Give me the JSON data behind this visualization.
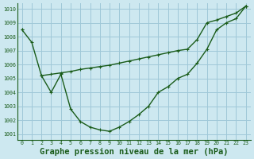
{
  "title": "Graphe pression niveau de la mer (hPa)",
  "background_color": "#cde8f0",
  "grid_color": "#9fc8d8",
  "line_color": "#1a5c1a",
  "ylim": [
    1000.6,
    1010.4
  ],
  "yticks": [
    1001,
    1002,
    1003,
    1004,
    1005,
    1006,
    1007,
    1008,
    1009,
    1010
  ],
  "xlim": [
    -0.5,
    23.5
  ],
  "xticks": [
    0,
    1,
    2,
    3,
    4,
    5,
    6,
    7,
    8,
    9,
    10,
    11,
    12,
    13,
    14,
    15,
    16,
    17,
    18,
    19,
    20,
    21,
    22,
    23
  ],
  "series1": [
    1008.5,
    1007.6,
    1005.2,
    1004.0,
    1005.3,
    1002.8,
    1001.9,
    1001.5,
    1001.3,
    1001.2,
    1001.5,
    1001.9,
    1002.4,
    1003.0,
    1004.0,
    1004.4,
    1005.0,
    1005.3,
    1006.1,
    1007.1,
    1008.5,
    1009.0,
    1009.3,
    1010.2
  ],
  "series2": [
    1008.5,
    null,
    null,
    null,
    null,
    null,
    null,
    null,
    null,
    null,
    null,
    null,
    null,
    null,
    null,
    null,
    null,
    null,
    null,
    null,
    null,
    null,
    null,
    1010.2
  ],
  "series3": [
    null,
    null,
    1005.2,
    1005.3,
    1005.4,
    1005.5,
    1005.65,
    1005.75,
    1005.85,
    1005.95,
    1006.1,
    1006.25,
    1006.4,
    1006.55,
    1006.7,
    1006.85,
    1007.0,
    1007.1,
    1007.8,
    1009.0,
    1009.2,
    1009.45,
    1009.7,
    1010.2
  ],
  "marker_size": 2.5,
  "linewidth": 1.0,
  "title_fontsize": 7.5
}
